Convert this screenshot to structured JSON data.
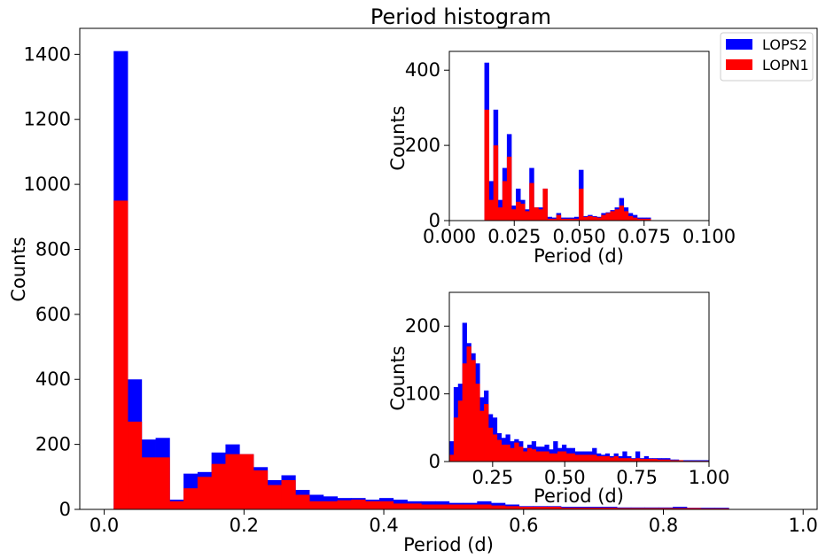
{
  "chart_data": [
    {
      "type": "bar",
      "role": "main",
      "title": "Period histogram",
      "xlabel": "Period (d)",
      "ylabel": "Counts",
      "xlim": [
        -0.035,
        1.02
      ],
      "ylim": [
        0,
        1480
      ],
      "xticks": [
        0.0,
        0.2,
        0.4,
        0.6,
        0.8,
        1.0
      ],
      "xtick_labels": [
        "0.0",
        "0.2",
        "0.4",
        "0.6",
        "0.8",
        "1.0"
      ],
      "yticks": [
        0,
        200,
        400,
        600,
        800,
        1000,
        1200,
        1400
      ],
      "ytick_labels": [
        "0",
        "200",
        "400",
        "600",
        "800",
        "1000",
        "1200",
        "1400"
      ],
      "bin_start": 0.0135,
      "bin_width": 0.02,
      "series": [
        {
          "name": "LOPS2",
          "color": "#0000ff",
          "values": [
            1410,
            400,
            215,
            220,
            30,
            110,
            115,
            175,
            200,
            170,
            130,
            90,
            105,
            60,
            45,
            40,
            35,
            35,
            30,
            35,
            30,
            25,
            25,
            25,
            20,
            20,
            25,
            20,
            15,
            10,
            10,
            10,
            8,
            8,
            8,
            8,
            6,
            6,
            6,
            6,
            8,
            5,
            5,
            5
          ]
        },
        {
          "name": "LOPN1",
          "color": "#ff0000",
          "values": [
            950,
            270,
            160,
            160,
            25,
            65,
            100,
            140,
            170,
            170,
            120,
            75,
            90,
            45,
            25,
            25,
            28,
            30,
            25,
            25,
            18,
            18,
            15,
            15,
            15,
            15,
            15,
            12,
            10,
            8,
            8,
            8,
            5,
            5,
            5,
            5,
            4,
            4,
            4,
            4,
            4,
            4,
            3,
            3
          ]
        }
      ],
      "legend": {
        "location": "top-right"
      }
    },
    {
      "type": "bar",
      "role": "inset-short",
      "xlabel": "Period (d)",
      "ylabel": "Counts",
      "xlim": [
        0.0,
        0.1
      ],
      "ylim": [
        0,
        450
      ],
      "xticks": [
        0.0,
        0.025,
        0.05,
        0.075,
        0.1
      ],
      "xtick_labels": [
        "0.000",
        "0.025",
        "0.050",
        "0.075",
        "0.100"
      ],
      "yticks": [
        0,
        200,
        400
      ],
      "ytick_labels": [
        "0",
        "200",
        "400"
      ],
      "bin_start": 0.0135,
      "bin_width": 0.00173,
      "series": [
        {
          "name": "LOPS2",
          "color": "#0000ff",
          "values": [
            420,
            105,
            295,
            55,
            140,
            230,
            40,
            85,
            55,
            30,
            140,
            35,
            35,
            85,
            10,
            8,
            20,
            8,
            8,
            8,
            10,
            135,
            12,
            15,
            12,
            10,
            20,
            22,
            28,
            35,
            60,
            35,
            20,
            15,
            8,
            8,
            8
          ]
        },
        {
          "name": "LOPN1",
          "color": "#ff0000",
          "values": [
            295,
            55,
            200,
            35,
            105,
            170,
            30,
            50,
            45,
            25,
            100,
            35,
            30,
            85,
            5,
            5,
            15,
            5,
            5,
            5,
            5,
            85,
            10,
            12,
            10,
            8,
            15,
            20,
            25,
            30,
            40,
            25,
            12,
            8,
            5,
            5,
            5
          ]
        }
      ]
    },
    {
      "type": "bar",
      "role": "inset-long",
      "xlabel": "Period (d)",
      "ylabel": "Counts",
      "xlim": [
        0.1,
        1.0
      ],
      "ylim": [
        0,
        250
      ],
      "xticks": [
        0.25,
        0.5,
        0.75,
        1.0
      ],
      "xtick_labels": [
        "0.25",
        "0.50",
        "0.75",
        "1.00"
      ],
      "yticks": [
        0,
        100,
        200
      ],
      "ytick_labels": [
        "0",
        "100",
        "200"
      ],
      "bin_start": 0.1,
      "bin_width": 0.015,
      "series": [
        {
          "name": "LOPS2",
          "color": "#0000ff",
          "values": [
            30,
            110,
            115,
            205,
            175,
            160,
            145,
            95,
            105,
            70,
            65,
            42,
            35,
            40,
            30,
            33,
            30,
            20,
            25,
            30,
            22,
            22,
            25,
            18,
            30,
            20,
            25,
            20,
            20,
            15,
            15,
            15,
            15,
            20,
            12,
            10,
            12,
            8,
            12,
            8,
            15,
            8,
            5,
            15,
            5,
            8,
            5,
            5,
            5,
            5,
            5,
            3,
            3,
            2,
            2,
            2,
            2,
            2,
            2,
            2
          ]
        },
        {
          "name": "LOPN1",
          "color": "#ff0000",
          "values": [
            10,
            65,
            90,
            145,
            170,
            150,
            115,
            75,
            85,
            50,
            40,
            32,
            25,
            25,
            20,
            28,
            22,
            15,
            20,
            18,
            15,
            15,
            15,
            12,
            12,
            15,
            15,
            12,
            12,
            10,
            10,
            10,
            10,
            10,
            8,
            8,
            8,
            6,
            8,
            5,
            5,
            5,
            4,
            5,
            4,
            4,
            4,
            4,
            3,
            3,
            3,
            2,
            2,
            2,
            1,
            1,
            1,
            1,
            1,
            1
          ]
        }
      ]
    }
  ]
}
